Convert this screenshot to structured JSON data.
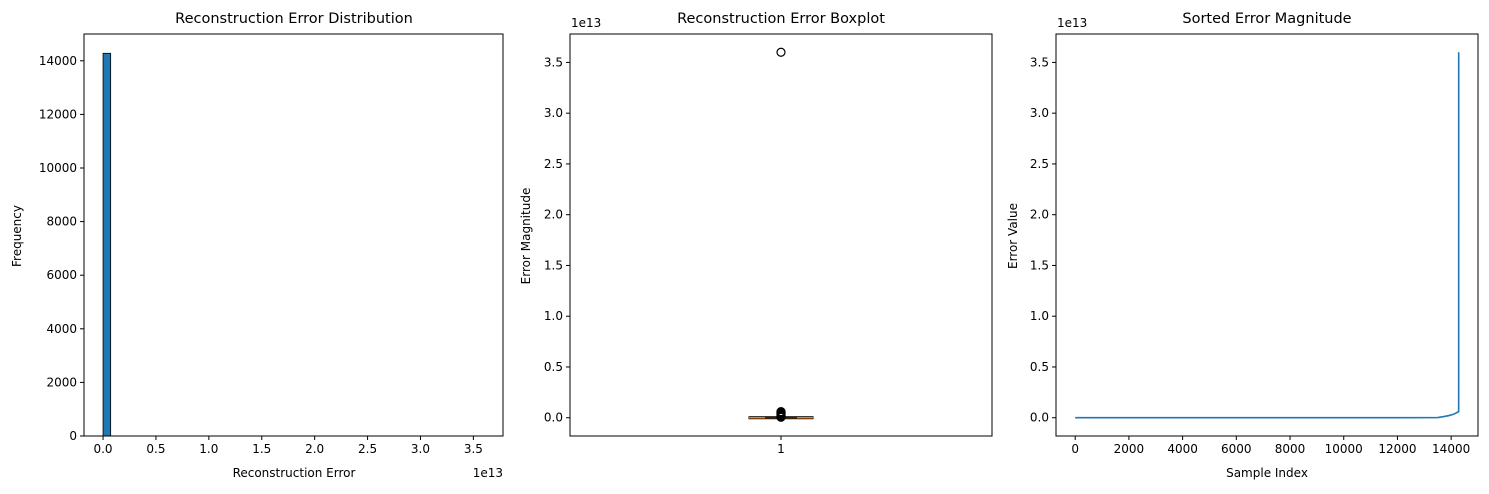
{
  "chart_data": [
    {
      "type": "bar",
      "title": "Reconstruction Error Distribution",
      "xlabel": "Reconstruction Error",
      "ylabel": "Frequency",
      "x_offset_label": "1e13",
      "x_scale": 10000000000000.0,
      "xlim": [
        -0.18,
        3.78
      ],
      "ylim": [
        0,
        15000
      ],
      "x_ticks": [
        0.0,
        0.5,
        1.0,
        1.5,
        2.0,
        2.5,
        3.0,
        3.5
      ],
      "x_tick_labels": [
        "0.0",
        "0.5",
        "1.0",
        "1.5",
        "2.0",
        "2.5",
        "3.0",
        "3.5"
      ],
      "y_ticks": [
        0,
        2000,
        4000,
        6000,
        8000,
        10000,
        12000,
        14000
      ],
      "y_tick_labels": [
        "0",
        "2000",
        "4000",
        "6000",
        "8000",
        "10000",
        "12000",
        "14000"
      ],
      "bin_range": [
        0.0,
        3.6
      ],
      "bins": 50,
      "counts": [
        14280,
        0,
        0,
        0,
        0,
        0,
        0,
        0,
        0,
        0,
        0,
        0,
        0,
        0,
        0,
        0,
        0,
        0,
        0,
        0,
        0,
        0,
        0,
        0,
        0,
        0,
        0,
        0,
        0,
        0,
        0,
        0,
        0,
        0,
        0,
        0,
        0,
        0,
        0,
        0,
        0,
        0,
        0,
        0,
        0,
        0,
        0,
        0,
        0,
        1
      ],
      "color": "#1f77b4",
      "grid": false
    },
    {
      "type": "box",
      "title": "Reconstruction Error Boxplot",
      "xlabel": "",
      "ylabel": "Error Magnitude",
      "y_offset_label": "1e13",
      "y_scale": 10000000000000.0,
      "ylim": [
        -0.18,
        3.78
      ],
      "y_ticks": [
        0.0,
        0.5,
        1.0,
        1.5,
        2.0,
        2.5,
        3.0,
        3.5
      ],
      "y_tick_labels": [
        "0.0",
        "0.5",
        "1.0",
        "1.5",
        "2.0",
        "2.5",
        "3.0",
        "3.5"
      ],
      "x_tick_labels": [
        "1"
      ],
      "box": {
        "q1": 0.0,
        "median": 0.0,
        "q3": 0.0,
        "whisker_low": 0.0,
        "whisker_high": 0.0
      },
      "outliers": [
        3.6,
        0.06,
        0.055,
        0.05,
        0.045,
        0.04,
        0.035,
        0.03,
        0.025,
        0.02,
        0.015,
        0.01,
        0.005
      ],
      "median_color": "#ff7f0e",
      "grid": false
    },
    {
      "type": "line",
      "title": "Sorted Error Magnitude",
      "xlabel": "Sample Index",
      "ylabel": "Error Value",
      "y_offset_label": "1e13",
      "y_scale": 10000000000000.0,
      "xlim": [
        -715,
        15000
      ],
      "ylim": [
        -0.18,
        3.78
      ],
      "x_ticks": [
        0,
        2000,
        4000,
        6000,
        8000,
        10000,
        12000,
        14000
      ],
      "x_tick_labels": [
        "0",
        "2000",
        "4000",
        "6000",
        "8000",
        "10000",
        "12000",
        "14000"
      ],
      "y_ticks": [
        0.0,
        0.5,
        1.0,
        1.5,
        2.0,
        2.5,
        3.0,
        3.5
      ],
      "y_tick_labels": [
        "0.0",
        "0.5",
        "1.0",
        "1.5",
        "2.0",
        "2.5",
        "3.0",
        "3.5"
      ],
      "series": [
        {
          "x": [
            0,
            2000,
            4000,
            6000,
            8000,
            10000,
            12000,
            13500,
            13700,
            13900,
            14100,
            14280,
            14281
          ],
          "y": [
            0,
            0,
            0,
            0,
            0,
            0,
            0,
            0.002,
            0.01,
            0.02,
            0.035,
            0.06,
            3.6
          ],
          "color": "#1f77b4"
        }
      ],
      "grid": false
    }
  ]
}
